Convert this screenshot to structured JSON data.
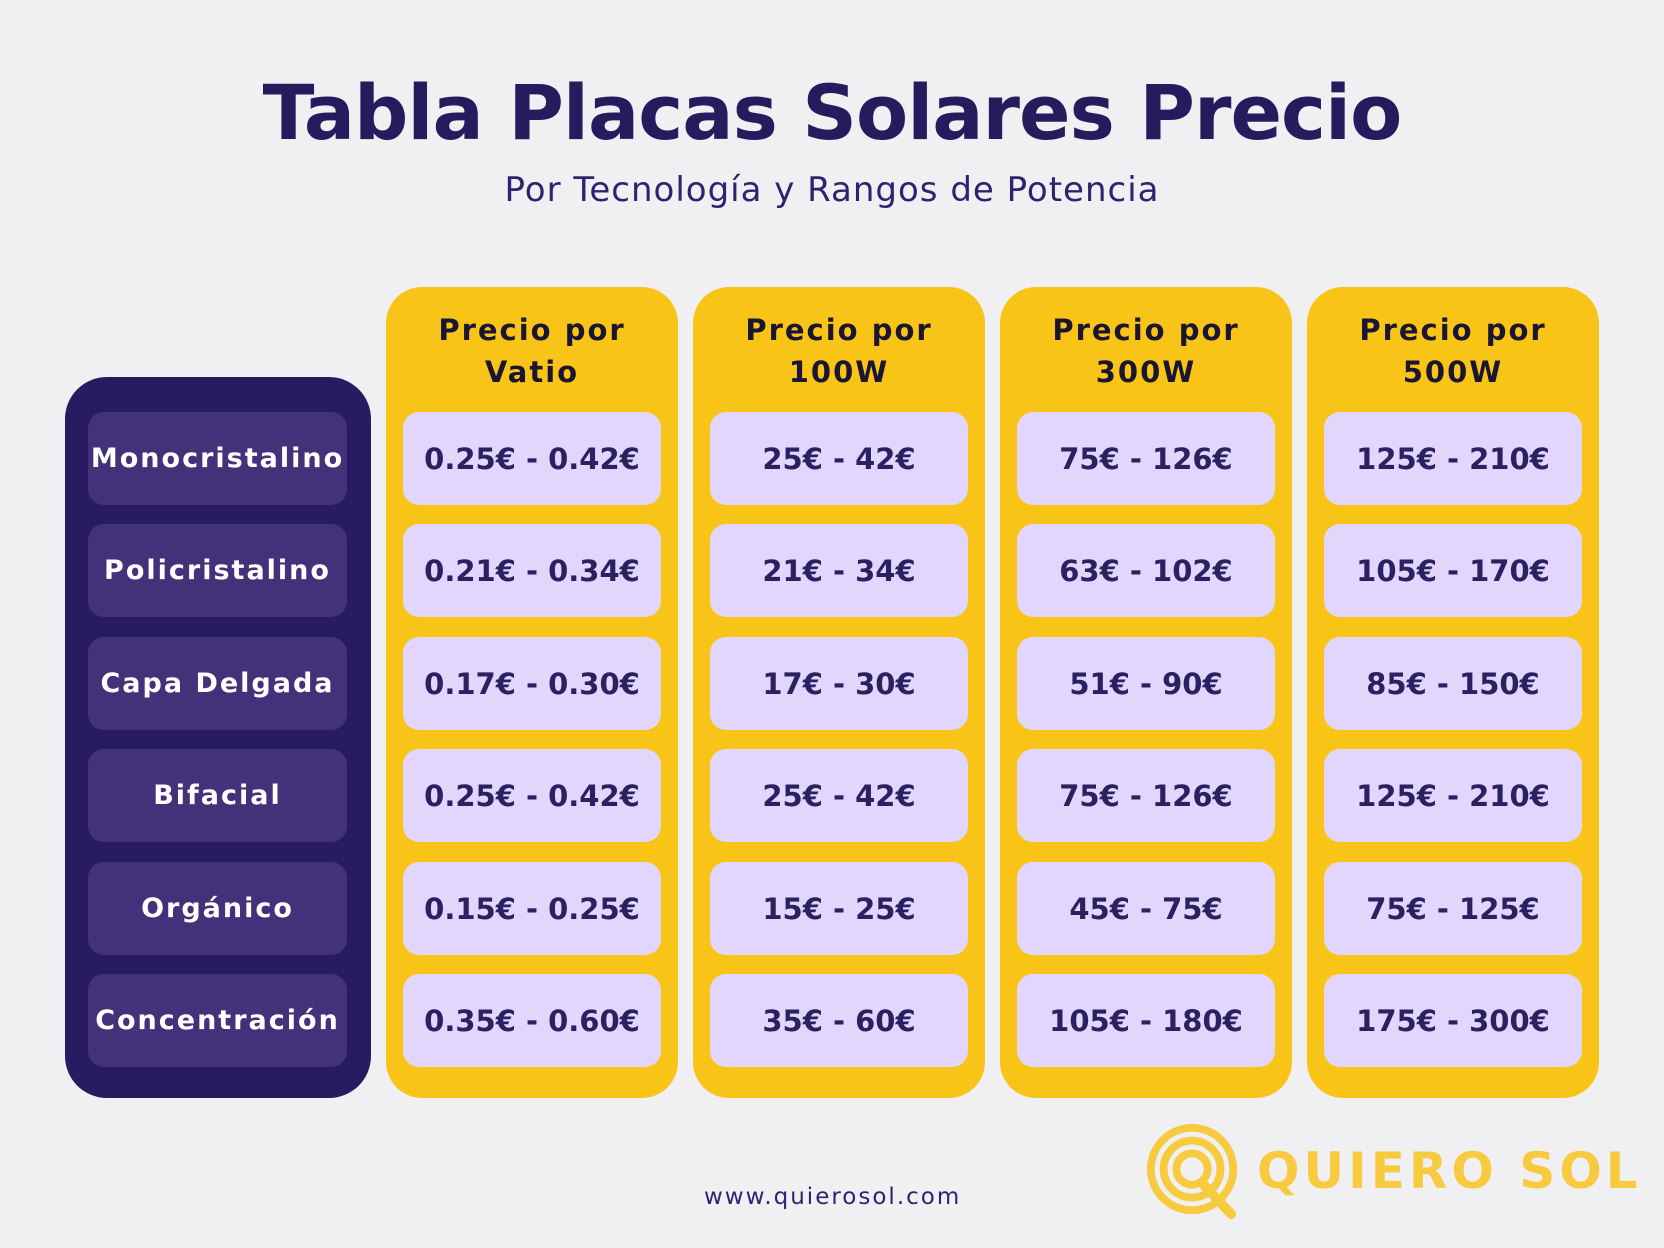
{
  "title": "Tabla Placas Solares Precio",
  "subtitle": "Por Tecnología y Rangos de Potencia",
  "technologies": [
    "Monocristalino",
    "Policristalino",
    "Capa Delgada",
    "Bifacial",
    "Orgánico",
    "Concentración"
  ],
  "columns": [
    {
      "header_line1": "Precio por",
      "header_line2": "Vatio",
      "values": [
        "0.25€ - 0.42€",
        "0.21€ - 0.34€",
        "0.17€ - 0.30€",
        "0.25€ - 0.42€",
        "0.15€ - 0.25€",
        "0.35€ - 0.60€"
      ]
    },
    {
      "header_line1": "Precio por",
      "header_line2": "100W",
      "values": [
        "25€ - 42€",
        "21€ - 34€",
        "17€ - 30€",
        "25€ - 42€",
        "15€ - 25€",
        "35€ - 60€"
      ]
    },
    {
      "header_line1": "Precio por",
      "header_line2": "300W",
      "values": [
        "75€ - 126€",
        "63€ - 102€",
        "51€ - 90€",
        "75€ - 126€",
        "45€ - 75€",
        "105€ - 180€"
      ]
    },
    {
      "header_line1": "Precio por",
      "header_line2": "500W",
      "values": [
        "125€ - 210€",
        "105€ - 170€",
        "85€ - 150€",
        "125€ - 210€",
        "75€ - 125€",
        "175€ - 300€"
      ]
    }
  ],
  "footer": {
    "url": "www.quierosol.com",
    "brand": "QUIERO SOL",
    "logo_icon": "q-sun-logo-icon"
  },
  "colors": {
    "background": "#f0f0f2",
    "navy": "#271c62",
    "tech_item": "#433179",
    "yellow": "#f9c418",
    "lavender": "#e2d6fd",
    "brand_yellow": "#f7ca3f"
  }
}
